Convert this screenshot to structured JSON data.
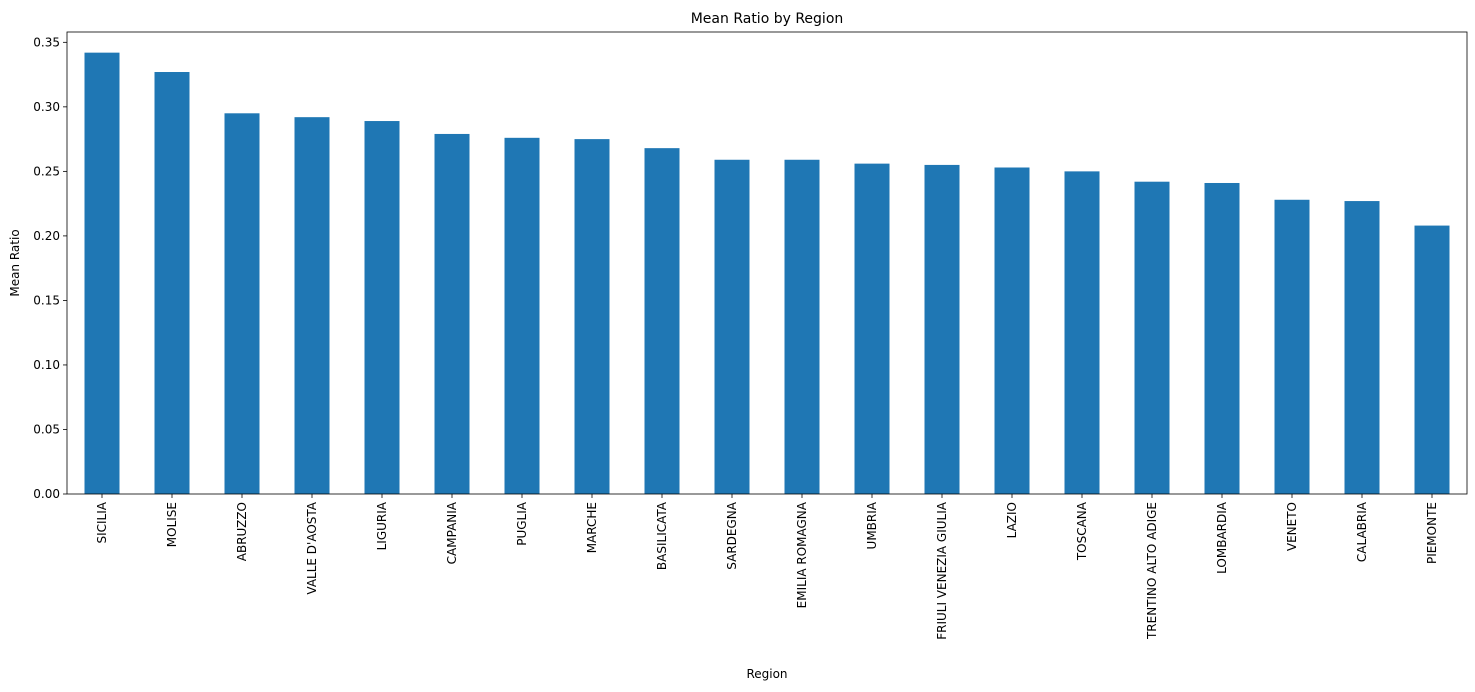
{
  "chart_data": {
    "type": "bar",
    "title": "Mean Ratio by Region",
    "xlabel": "Region",
    "ylabel": "Mean Ratio",
    "ylim": [
      0,
      0.358
    ],
    "yticks": [
      0.0,
      0.05,
      0.1,
      0.15,
      0.2,
      0.25,
      0.3,
      0.35
    ],
    "ytick_labels": [
      "0.00",
      "0.05",
      "0.10",
      "0.15",
      "0.20",
      "0.25",
      "0.30",
      "0.35"
    ],
    "grid": false,
    "legend": "none",
    "bar_color": "#1f77b4",
    "categories": [
      "SICILIA",
      "MOLISE",
      "ABRUZZO",
      "VALLE D'AOSTA",
      "LIGURIA",
      "CAMPANIA",
      "PUGLIA",
      "MARCHE",
      "BASILICATA",
      "SARDEGNA",
      "EMILIA ROMAGNA",
      "UMBRIA",
      "FRIULI VENEZIA GIULIA",
      "LAZIO",
      "TOSCANA",
      "TRENTINO ALTO ADIGE",
      "LOMBARDIA",
      "VENETO",
      "CALABRIA",
      "PIEMONTE"
    ],
    "values": [
      0.342,
      0.327,
      0.295,
      0.292,
      0.289,
      0.279,
      0.276,
      0.275,
      0.268,
      0.259,
      0.259,
      0.256,
      0.255,
      0.253,
      0.25,
      0.242,
      0.241,
      0.228,
      0.227,
      0.208
    ]
  }
}
